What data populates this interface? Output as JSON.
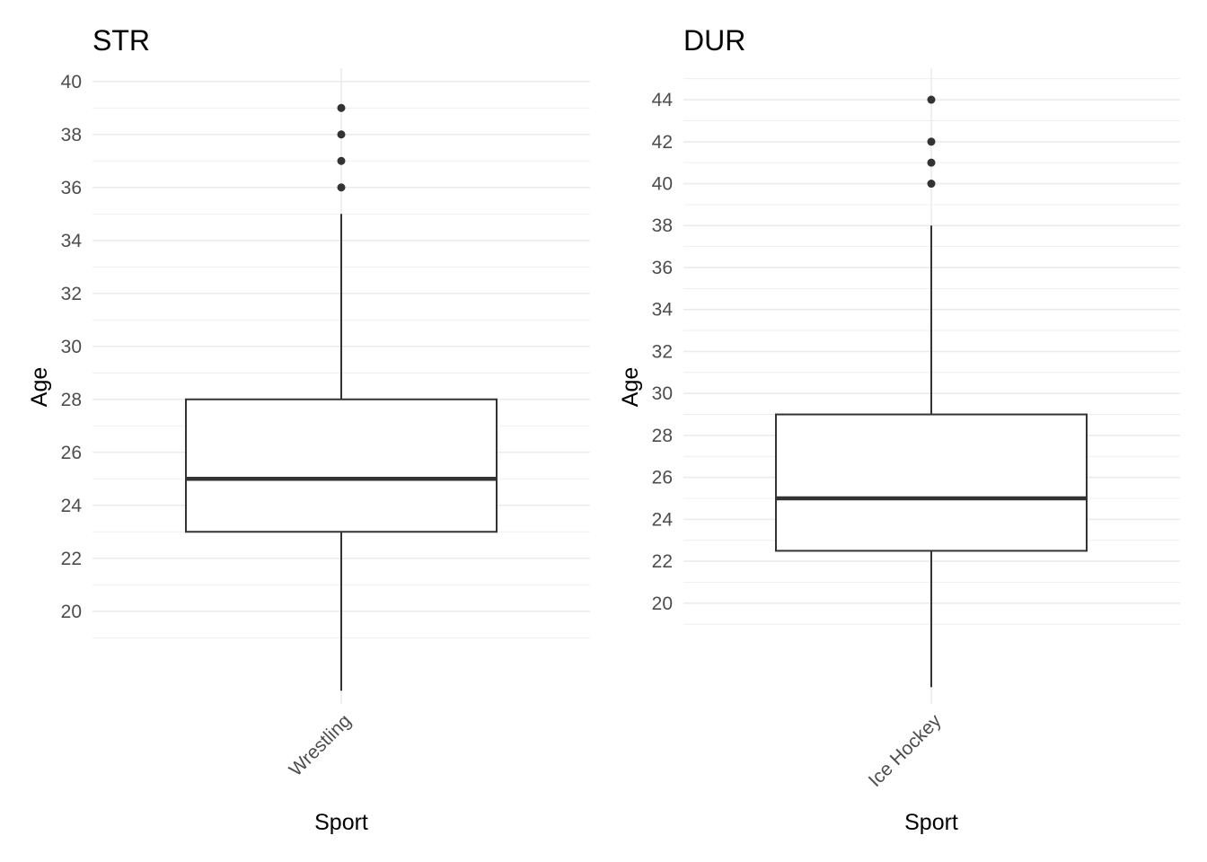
{
  "chart_data": [
    {
      "type": "box",
      "title": "STR",
      "xlabel": "Sport",
      "ylabel": "Age",
      "categories": [
        "Wrestling"
      ],
      "ylim": [
        16.5,
        40.5
      ],
      "yticks": [
        20,
        22,
        24,
        26,
        28,
        30,
        32,
        34,
        36,
        38,
        40
      ],
      "ytick_labels": [
        "20",
        "22",
        "24",
        "26",
        "28",
        "30",
        "32",
        "34",
        "36",
        "38",
        "40"
      ],
      "boxes": [
        {
          "category": "Wrestling",
          "whisker_low": 17,
          "q1": 23,
          "median": 25,
          "q3": 28,
          "whisker_high": 35,
          "outliers": [
            36,
            37,
            38,
            39
          ]
        }
      ],
      "grid": true
    },
    {
      "type": "box",
      "title": "DUR",
      "xlabel": "Sport",
      "ylabel": "Age",
      "categories": [
        "Ice Hockey"
      ],
      "ylim": [
        15.2,
        45.5
      ],
      "yticks": [
        20,
        22,
        24,
        26,
        28,
        30,
        32,
        34,
        36,
        38,
        40,
        42,
        44
      ],
      "ytick_labels": [
        "20",
        "22",
        "24",
        "26",
        "28",
        "30",
        "32",
        "34",
        "36",
        "38",
        "40",
        "42",
        "44"
      ],
      "boxes": [
        {
          "category": "Ice Hockey",
          "whisker_low": 16,
          "q1": 22.5,
          "median": 25,
          "q3": 29,
          "whisker_high": 38,
          "outliers": [
            40,
            41,
            42,
            44
          ]
        }
      ],
      "grid": true
    }
  ]
}
